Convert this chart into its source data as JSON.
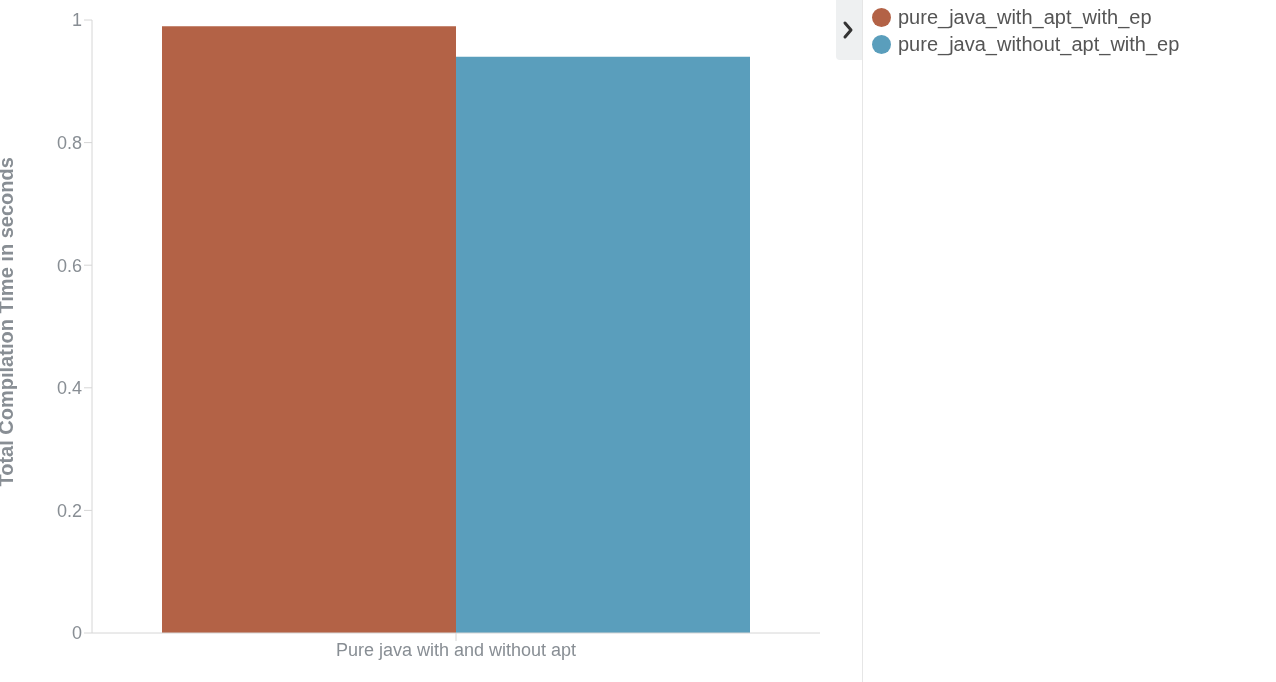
{
  "chart_data": {
    "type": "bar",
    "ylabel": "Total Compilation Time in seconds",
    "categories": [
      "Pure java with and without apt"
    ],
    "series": [
      {
        "name": "pure_java_with_apt_with_ep",
        "color": "#b36246",
        "values": [
          0.99
        ]
      },
      {
        "name": "pure_java_without_apt_with_ep",
        "color": "#5a9ebc",
        "values": [
          0.94
        ]
      }
    ],
    "ylim": [
      0,
      1
    ],
    "yticks": [
      0,
      0.2,
      0.4,
      0.6,
      0.8,
      1
    ],
    "legend": "right",
    "grid": false
  }
}
